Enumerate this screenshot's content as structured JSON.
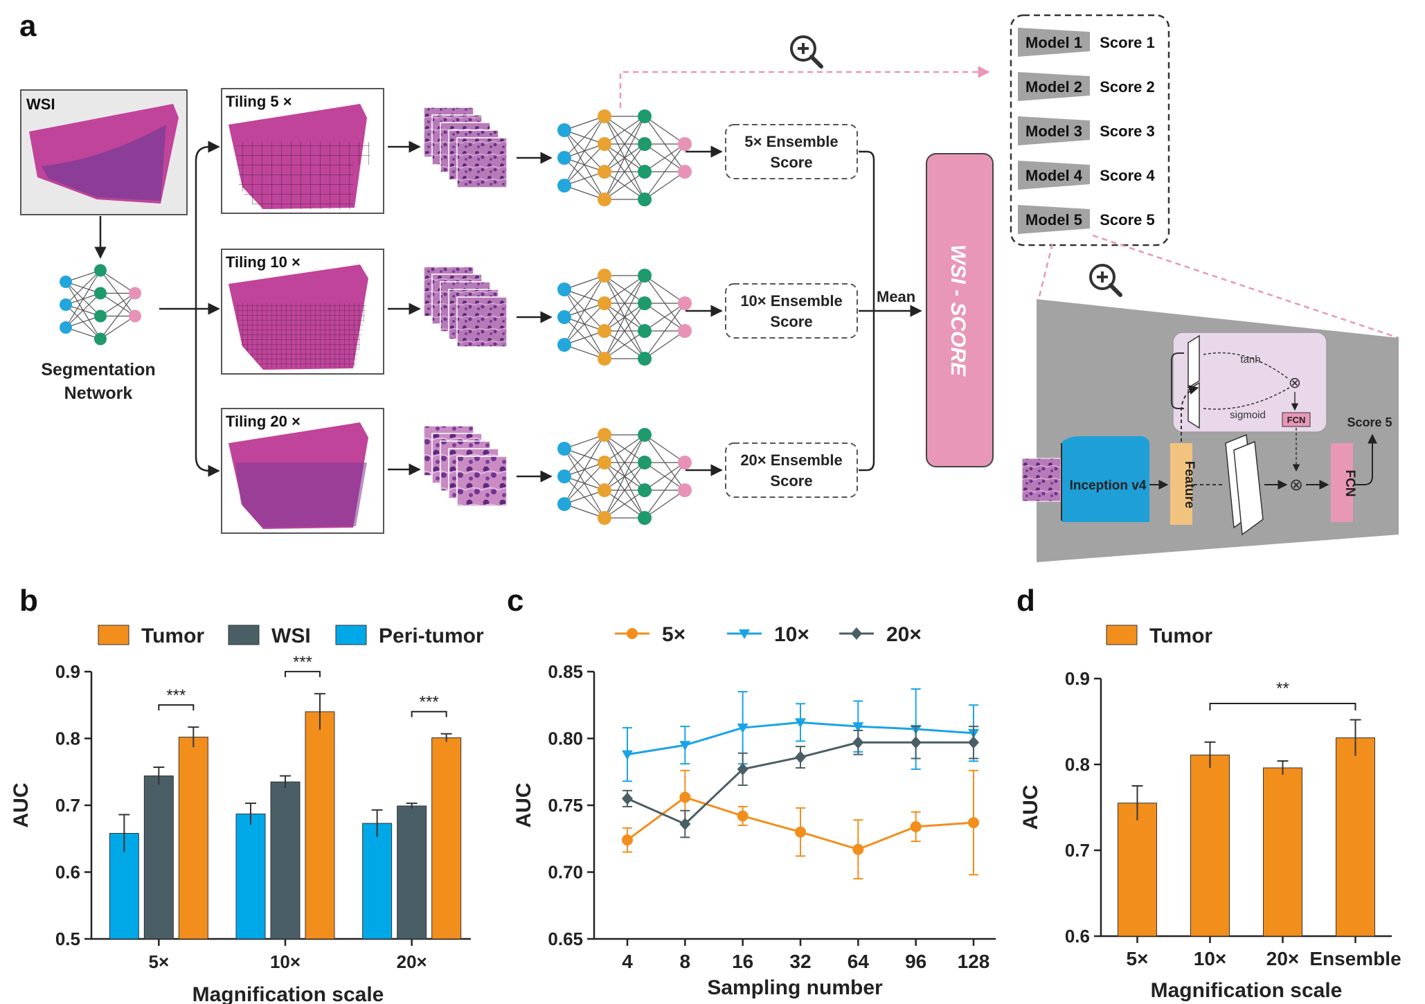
{
  "panel_labels": {
    "a": "a",
    "b": "b",
    "c": "c",
    "d": "d"
  },
  "pipeline": {
    "wsi_label": "WSI",
    "segmentation_label_line1": "Segmentation",
    "segmentation_label_line2": "Network",
    "tiling_labels": [
      "Tiling 5 ×",
      "Tiling 10 ×",
      "Tiling 20 ×"
    ],
    "ensemble_scores": [
      {
        "line1": "5× Ensemble",
        "line2": "Score"
      },
      {
        "line1": "10× Ensemble",
        "line2": "Score"
      },
      {
        "line1": "20× Ensemble",
        "line2": "Score"
      }
    ],
    "mean_label": "Mean",
    "wsi_score_label": "WSI - SCORE",
    "zoom_icon": "magnifier-plus-icon"
  },
  "ensemble_models": [
    {
      "model": "Model 1",
      "score": "Score 1"
    },
    {
      "model": "Model 2",
      "score": "Score 2"
    },
    {
      "model": "Model 3",
      "score": "Score 3"
    },
    {
      "model": "Model 4",
      "score": "Score 4"
    },
    {
      "model": "Model 5",
      "score": "Score 5"
    }
  ],
  "model_detail": {
    "backbone": "Inception v4",
    "feature": "Feature",
    "fcn": "FCN",
    "attention_tanh": "tanh",
    "attention_sigmoid": "sigmoid",
    "attention_fcn": "FCN",
    "output": "Score 5",
    "multiply_symbol": "⊗"
  },
  "colors": {
    "orange": "#f28e1c",
    "slate": "#4a5e66",
    "cyan": "#00a8e8",
    "line_blue": "#1aa3e6",
    "pink": "#e897b7",
    "node_blue": "#22a6dc",
    "node_orange": "#e9a12f",
    "node_green": "#1e9a6c",
    "node_pink": "#e892b8",
    "tissue": "#c0449a",
    "grey_panel": "#a3a3a3",
    "feature": "#f2c27f",
    "attention_bg": "#e8d8ea"
  },
  "chart_data": [
    {
      "panel": "b",
      "type": "bar",
      "categories": [
        "5×",
        "10×",
        "20×"
      ],
      "series": [
        {
          "name": "Peri-tumor",
          "color": "#00a8e8",
          "values": [
            0.658,
            0.687,
            0.673
          ],
          "errors": [
            0.028,
            0.016,
            0.02
          ]
        },
        {
          "name": "WSI",
          "color": "#4a5e66",
          "values": [
            0.744,
            0.735,
            0.699
          ],
          "errors": [
            0.013,
            0.009,
            0.004
          ]
        },
        {
          "name": "Tumor",
          "color": "#f28e1c",
          "values": [
            0.802,
            0.84,
            0.801
          ],
          "errors": [
            0.015,
            0.027,
            0.006
          ]
        }
      ],
      "legend_order": [
        "Tumor",
        "WSI",
        "Peri-tumor"
      ],
      "significance": [
        {
          "category": "5×",
          "label": "***"
        },
        {
          "category": "10×",
          "label": "***"
        },
        {
          "category": "20×",
          "label": "***"
        }
      ],
      "xlabel": "Magnification scale",
      "ylabel": "AUC",
      "ylim": [
        0.5,
        0.9
      ],
      "yticks": [
        "0.5",
        "0.6",
        "0.7",
        "0.8",
        "0.9"
      ]
    },
    {
      "panel": "c",
      "type": "line",
      "x": [
        "4",
        "8",
        "16",
        "32",
        "64",
        "96",
        "128"
      ],
      "series": [
        {
          "name": "5×",
          "color": "#f28e1c",
          "marker": "circle",
          "values": [
            0.724,
            0.756,
            0.742,
            0.73,
            0.717,
            0.734,
            0.737
          ],
          "errors": [
            0.009,
            0.02,
            0.007,
            0.018,
            0.022,
            0.011,
            0.039
          ]
        },
        {
          "name": "10×",
          "color": "#1aa3e6",
          "marker": "triangle-down",
          "values": [
            0.788,
            0.795,
            0.808,
            0.812,
            0.809,
            0.807,
            0.804
          ],
          "errors": [
            0.02,
            0.014,
            0.027,
            0.014,
            0.019,
            0.03,
            0.021
          ]
        },
        {
          "name": "20×",
          "color": "#4a5e66",
          "marker": "diamond",
          "values": [
            0.755,
            0.736,
            0.777,
            0.786,
            0.797,
            0.797,
            0.797
          ],
          "errors": [
            0.006,
            0.01,
            0.012,
            0.008,
            0.009,
            0.012,
            0.012
          ]
        }
      ],
      "xlabel": "Sampling number",
      "ylabel": "AUC",
      "ylim": [
        0.65,
        0.85
      ],
      "yticks": [
        "0.65",
        "0.70",
        "0.75",
        "0.80",
        "0.85"
      ]
    },
    {
      "panel": "d",
      "type": "bar",
      "categories": [
        "5×",
        "10×",
        "20×",
        "Ensemble"
      ],
      "series": [
        {
          "name": "Tumor",
          "color": "#f28e1c",
          "values": [
            0.755,
            0.811,
            0.796,
            0.831
          ],
          "errors": [
            0.02,
            0.015,
            0.008,
            0.021
          ]
        }
      ],
      "significance": [
        {
          "from": "10×",
          "to": "Ensemble",
          "label": "**"
        }
      ],
      "xlabel": "Magnification scale",
      "ylabel": "AUC",
      "ylim": [
        0.6,
        0.9
      ],
      "yticks": [
        "0.6",
        "0.7",
        "0.8",
        "0.9"
      ]
    }
  ]
}
